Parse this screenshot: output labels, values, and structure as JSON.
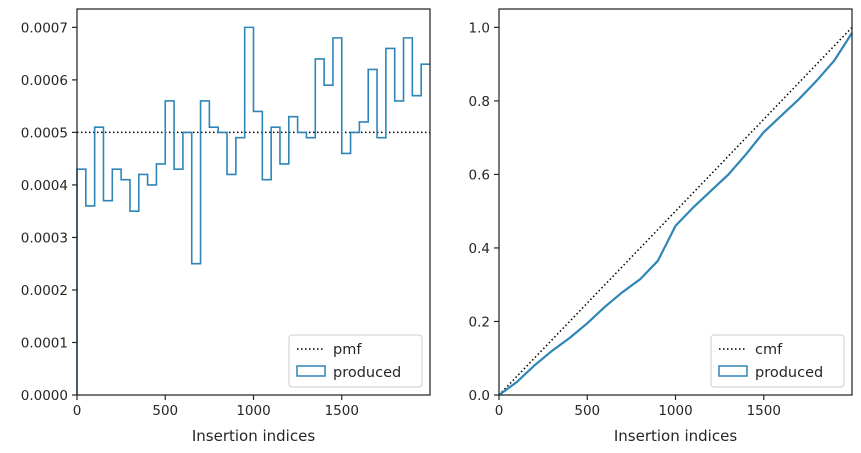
{
  "colors": {
    "series": "#2e86b7",
    "reference": "#000000",
    "axes": "#262626",
    "legend_border": "#cccccc"
  },
  "chart_data": [
    {
      "type": "step",
      "xlabel": "Insertion indices",
      "ylabel": "",
      "xlim": [
        0,
        2000
      ],
      "ylim": [
        0,
        0.000735
      ],
      "xticks": [
        0,
        500,
        1000,
        1500
      ],
      "yticks": [
        0,
        0.0001,
        0.0002,
        0.0003,
        0.0004,
        0.0005,
        0.0006,
        0.0007
      ],
      "ytick_labels": [
        "0.0000",
        "0.0001",
        "0.0002",
        "0.0003",
        "0.0004",
        "0.0005",
        "0.0006",
        "0.0007"
      ],
      "grid": false,
      "legend_position": "lower-right",
      "reference": {
        "name": "pmf",
        "style": "dotted",
        "y": 0.0005
      },
      "series": [
        {
          "name": "produced",
          "bin_width": 50,
          "values": [
            0.00043,
            0.00036,
            0.00051,
            0.00037,
            0.00043,
            0.00041,
            0.00035,
            0.00042,
            0.0004,
            0.00044,
            0.00056,
            0.00043,
            0.0005,
            0.00025,
            0.00056,
            0.00051,
            0.0005,
            0.00042,
            0.00049,
            0.0007,
            0.00054,
            0.00041,
            0.00051,
            0.00044,
            0.00053,
            0.0005,
            0.00049,
            0.00064,
            0.00059,
            0.00068,
            0.00046,
            0.0005,
            0.00052,
            0.00062,
            0.00049,
            0.00066,
            0.00056,
            0.00068,
            0.00057,
            0.00063
          ]
        }
      ]
    },
    {
      "type": "line",
      "xlabel": "Insertion indices",
      "ylabel": "",
      "xlim": [
        0,
        2000
      ],
      "ylim": [
        0,
        1.05
      ],
      "xticks": [
        0,
        500,
        1000,
        1500
      ],
      "yticks": [
        0,
        0.2,
        0.4,
        0.6,
        0.8,
        1.0
      ],
      "ytick_labels": [
        "0.0",
        "0.2",
        "0.4",
        "0.6",
        "0.8",
        "1.0"
      ],
      "grid": false,
      "legend_position": "lower-right",
      "reference": {
        "name": "cmf",
        "style": "dotted",
        "x": [
          0,
          2000
        ],
        "y": [
          0,
          1.0
        ]
      },
      "series": [
        {
          "name": "produced",
          "x": [
            0,
            100,
            200,
            300,
            400,
            500,
            600,
            700,
            800,
            900,
            1000,
            1100,
            1200,
            1300,
            1400,
            1500,
            1600,
            1700,
            1800,
            1900,
            2000
          ],
          "y": [
            0,
            0.035,
            0.08,
            0.12,
            0.155,
            0.195,
            0.24,
            0.28,
            0.315,
            0.365,
            0.46,
            0.51,
            0.555,
            0.6,
            0.655,
            0.715,
            0.76,
            0.805,
            0.855,
            0.91,
            0.985
          ]
        }
      ]
    }
  ]
}
